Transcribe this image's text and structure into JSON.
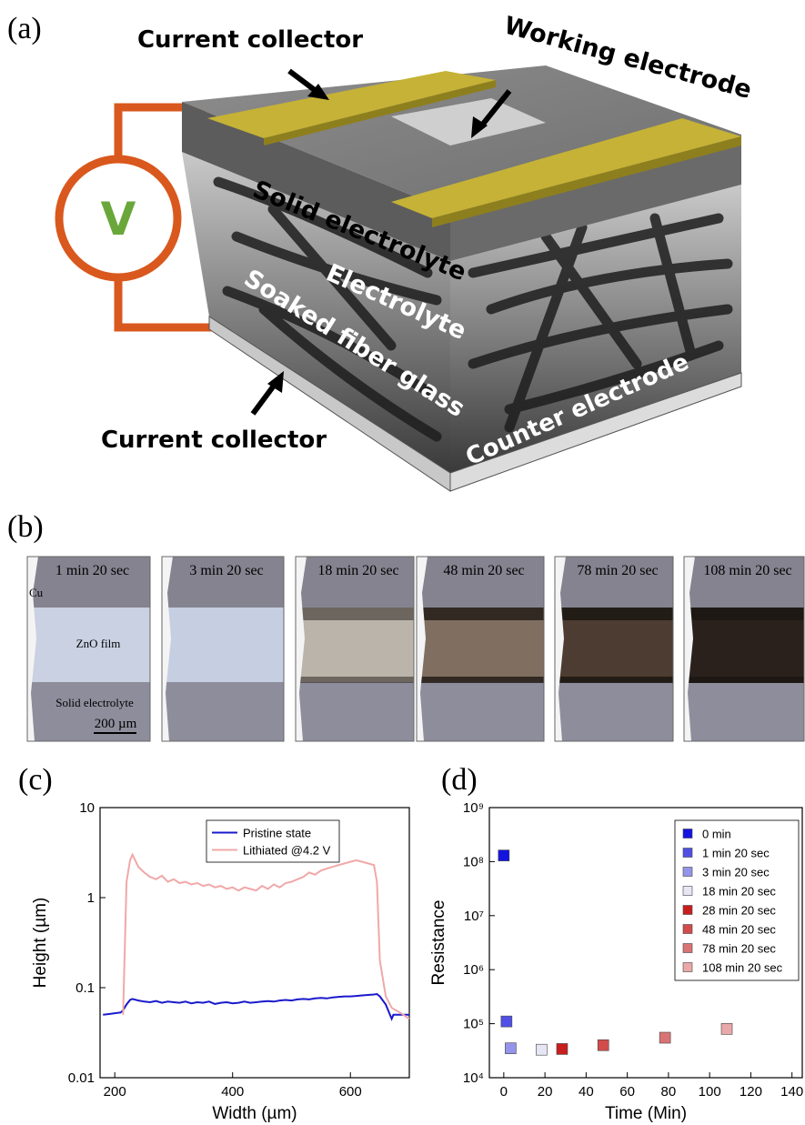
{
  "panel_a": {
    "label": "(a)",
    "current_collector_top": "Current collector",
    "working_electrode": "Working electrode",
    "solid_electrolyte": "Solid electrolyte",
    "electrolyte": "Electrolyte",
    "soaked_fiber_glass": "Soaked fiber glass",
    "counter_electrode": "Counter electrode",
    "current_collector_bottom": "Current collector",
    "voltmeter": "V"
  },
  "panel_b": {
    "label": "(b)",
    "captions": [
      "1 min 20 sec",
      "3 min 20 sec",
      "18 min 20 sec",
      "48 min 20 sec",
      "78 min 20 sec",
      "108 min 20 sec"
    ],
    "labels": {
      "cu": "Cu",
      "zno": "ZnO film",
      "solid": "Solid electrolyte",
      "scale": "200 µm"
    }
  },
  "chart_data": [
    {
      "type": "line",
      "panel_label": "(c)",
      "xlabel": "Width (µm)",
      "ylabel": "Height (µm)",
      "yscale": "log",
      "legend": "upper center",
      "xlim": [
        175,
        700
      ],
      "xticks": [
        200,
        400,
        600
      ],
      "ylim": [
        0.01,
        10
      ],
      "yticks": [
        0.01,
        0.1,
        1,
        10
      ],
      "x": [
        180,
        190,
        200,
        210,
        214,
        220,
        226,
        230,
        240,
        250,
        260,
        270,
        280,
        290,
        300,
        310,
        320,
        330,
        340,
        350,
        360,
        370,
        380,
        390,
        400,
        410,
        420,
        430,
        440,
        450,
        460,
        470,
        480,
        490,
        500,
        510,
        520,
        530,
        540,
        550,
        560,
        570,
        580,
        590,
        600,
        610,
        620,
        630,
        640,
        645,
        650,
        660,
        670,
        673,
        680,
        690,
        700
      ],
      "series": [
        {
          "name": "Pristine state",
          "color": "#1a1acc",
          "values": [
            0.05,
            0.051,
            0.052,
            0.053,
            0.056,
            0.065,
            0.073,
            0.075,
            0.072,
            0.07,
            0.069,
            0.071,
            0.068,
            0.07,
            0.069,
            0.068,
            0.07,
            0.067,
            0.069,
            0.068,
            0.07,
            0.066,
            0.068,
            0.069,
            0.067,
            0.068,
            0.07,
            0.068,
            0.069,
            0.07,
            0.071,
            0.07,
            0.072,
            0.073,
            0.072,
            0.074,
            0.075,
            0.074,
            0.076,
            0.077,
            0.076,
            0.078,
            0.079,
            0.08,
            0.08,
            0.081,
            0.082,
            0.083,
            0.084,
            0.085,
            0.08,
            0.065,
            0.045,
            0.05,
            0.05,
            0.05,
            0.05
          ]
        },
        {
          "name": "Lithiated @4.2 V",
          "color": "#f0a8a8",
          "values": [
            null,
            null,
            null,
            null,
            0.05,
            1.5,
            2.6,
            3.0,
            2.2,
            1.9,
            1.7,
            1.6,
            1.75,
            1.5,
            1.6,
            1.45,
            1.5,
            1.4,
            1.45,
            1.35,
            1.4,
            1.3,
            1.35,
            1.25,
            1.3,
            1.2,
            1.3,
            1.25,
            1.2,
            1.35,
            1.25,
            1.4,
            1.3,
            1.45,
            1.5,
            1.6,
            1.7,
            1.9,
            1.8,
            2.0,
            2.1,
            2.2,
            2.3,
            2.4,
            2.5,
            2.6,
            2.5,
            2.4,
            2.3,
            1.5,
            0.2,
            0.08,
            0.06,
            0.058,
            0.055,
            0.05,
            0.045
          ]
        }
      ]
    },
    {
      "type": "scatter",
      "panel_label": "(d)",
      "xlabel": "Time (Min)",
      "ylabel": "Resistance",
      "yscale": "log",
      "legend": "upper right",
      "xlim": [
        -7,
        145
      ],
      "xticks": [
        0,
        20,
        40,
        60,
        80,
        100,
        120,
        140
      ],
      "ylim": [
        10000,
        1000000000
      ],
      "yticks": [
        {
          "value": 10000,
          "label": "10⁴"
        },
        {
          "value": 100000,
          "label": "10⁵"
        },
        {
          "value": 1000000,
          "label": "10⁶"
        },
        {
          "value": 10000000,
          "label": "10⁷"
        },
        {
          "value": 100000000,
          "label": "10⁸"
        },
        {
          "value": 1000000000,
          "label": "10⁹"
        }
      ],
      "series": [
        {
          "name": "0 min",
          "color": "#1414e0",
          "x": [
            0
          ],
          "values": [
            130000000
          ]
        },
        {
          "name": "1 min 20 sec",
          "color": "#5050e6",
          "x": [
            1.33
          ],
          "values": [
            110000
          ]
        },
        {
          "name": "3 min 20 sec",
          "color": "#9494ea",
          "x": [
            3.33
          ],
          "values": [
            35000
          ]
        },
        {
          "name": "18 min 20 sec",
          "color": "#e6e6f4",
          "x": [
            18.33
          ],
          "values": [
            33000
          ]
        },
        {
          "name": "28 min 20 sec",
          "color": "#c81e1e",
          "x": [
            28.33
          ],
          "values": [
            34000
          ]
        },
        {
          "name": "48 min 20 sec",
          "color": "#d24c4c",
          "x": [
            48.33
          ],
          "values": [
            40000
          ]
        },
        {
          "name": "78 min 20 sec",
          "color": "#da7474",
          "x": [
            78.33
          ],
          "values": [
            55000
          ]
        },
        {
          "name": "108 min 20 sec",
          "color": "#eaa8a8",
          "x": [
            108.33
          ],
          "values": [
            80000
          ]
        }
      ]
    }
  ]
}
